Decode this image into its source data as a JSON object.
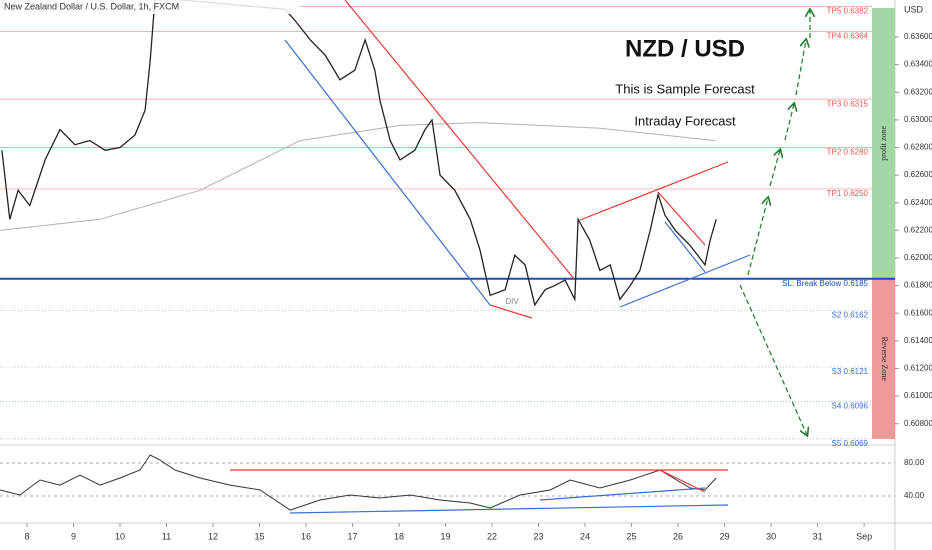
{
  "chart_data": {
    "type": "line",
    "title": "New Zealand Dollar / U.S. Dollar, 1h, FXCM",
    "currency": "USD",
    "headline": "NZD / USD",
    "subtitle": "This is Sample Forecast",
    "note": "Intraday Forecast",
    "divergence_label": "DIV",
    "zones": [
      {
        "label": "profit zone",
        "color": "#a5d6a7"
      },
      {
        "label": "Reverse Zone",
        "color": "#ef9a9a"
      }
    ],
    "xlim": [
      -0.58,
      18.17
    ],
    "xticks": [
      {
        "value": 0,
        "label": "8"
      },
      {
        "value": 1,
        "label": "9"
      },
      {
        "value": 2,
        "label": "10"
      },
      {
        "value": 3,
        "label": "11"
      },
      {
        "value": 4,
        "label": "12"
      },
      {
        "value": 5,
        "label": "15"
      },
      {
        "value": 6,
        "label": "16"
      },
      {
        "value": 7,
        "label": "17"
      },
      {
        "value": 8,
        "label": "18"
      },
      {
        "value": 9,
        "label": "19"
      },
      {
        "value": 10,
        "label": "22"
      },
      {
        "value": 11,
        "label": "23"
      },
      {
        "value": 12,
        "label": "24"
      },
      {
        "value": 13,
        "label": "25"
      },
      {
        "value": 14,
        "label": "26"
      },
      {
        "value": 15,
        "label": "29"
      },
      {
        "value": 16,
        "label": "30"
      },
      {
        "value": 17,
        "label": "31"
      },
      {
        "value": 18,
        "label": "Sep"
      }
    ],
    "ylim": [
      0.60682,
      0.63868
    ],
    "yticks": [
      {
        "value": 0.608,
        "label": "0.60800"
      },
      {
        "value": 0.61,
        "label": "0.61000"
      },
      {
        "value": 0.612,
        "label": "0.61200"
      },
      {
        "value": 0.614,
        "label": "0.61400"
      },
      {
        "value": 0.616,
        "label": "0.61600"
      },
      {
        "value": 0.618,
        "label": "0.61800"
      },
      {
        "value": 0.62,
        "label": "0.62000"
      },
      {
        "value": 0.622,
        "label": "0.62200"
      },
      {
        "value": 0.624,
        "label": "0.62400"
      },
      {
        "value": 0.626,
        "label": "0.62600"
      },
      {
        "value": 0.628,
        "label": "0.62800"
      },
      {
        "value": 0.63,
        "label": "0.63000"
      },
      {
        "value": 0.632,
        "label": "0.63200"
      },
      {
        "value": 0.634,
        "label": "0.63400"
      },
      {
        "value": 0.636,
        "label": "0.63600"
      }
    ],
    "series": [
      {
        "color": "#222222",
        "x": [
          -0.54,
          -0.37,
          -0.19,
          0.06,
          0.39,
          0.71,
          1.03,
          1.35,
          1.68,
          2.0,
          2.32,
          2.54,
          2.65,
          2.75,
          3.29,
          5.55,
          5.76,
          6.09,
          6.41,
          6.73,
          7.05,
          7.27,
          7.48,
          7.59,
          7.81,
          8.02,
          8.34,
          8.56,
          8.71,
          8.88,
          9.2,
          9.53,
          9.74,
          9.96,
          10.28,
          10.49,
          10.71,
          10.92,
          11.14,
          11.35,
          11.57,
          11.78,
          11.85,
          12.1,
          12.32,
          12.54,
          12.75,
          12.97,
          13.18,
          13.4,
          13.57,
          13.72,
          13.94,
          14.26,
          14.58,
          14.69,
          14.82
        ],
        "values": [
          0.6278,
          0.6228,
          0.6249,
          0.6238,
          0.6271,
          0.6293,
          0.6282,
          0.6285,
          0.6278,
          0.628,
          0.6289,
          0.6307,
          0.6343,
          0.6387,
          0.6387,
          0.638,
          0.6372,
          0.6358,
          0.6347,
          0.6329,
          0.6336,
          0.6358,
          0.6336,
          0.6314,
          0.6285,
          0.6271,
          0.6278,
          0.6293,
          0.63,
          0.626,
          0.6249,
          0.6228,
          0.6206,
          0.6173,
          0.6177,
          0.6202,
          0.6195,
          0.6166,
          0.6177,
          0.618,
          0.6184,
          0.617,
          0.6228,
          0.6213,
          0.6191,
          0.6195,
          0.617,
          0.618,
          0.6191,
          0.622,
          0.6246,
          0.6231,
          0.622,
          0.6209,
          0.6195,
          0.6213,
          0.6228
        ]
      },
      {
        "color": "#b0b0b0",
        "x": [
          -0.58,
          1.57,
          3.72,
          5.87,
          8.02,
          9.74,
          12.32,
          14.8
        ],
        "values": [
          0.622,
          0.6228,
          0.6249,
          0.6285,
          0.6296,
          0.6298,
          0.6294,
          0.6285
        ]
      }
    ],
    "levels": [
      {
        "label": "TP5 0.6382",
        "value": 0.6382,
        "color": "#ef5350"
      },
      {
        "label": "TP4 0.6364",
        "value": 0.6364,
        "color": "#ef5350"
      },
      {
        "label": "TP3 0.6315",
        "value": 0.6315,
        "color": "#ef5350"
      },
      {
        "label": "TP2 0.6280",
        "value": 0.628,
        "color": "#ef5350"
      },
      {
        "label": "TP1 0.6250",
        "value": 0.625,
        "color": "#ef5350"
      },
      {
        "label": "SL: Break Below 0.6185",
        "value": 0.6185,
        "color": "#1e4fb0"
      },
      {
        "label": "S2 0.6162",
        "value": 0.6162,
        "color": "#3b6fd0"
      },
      {
        "label": "S3 0.6121",
        "value": 0.6121,
        "color": "#3b6fd0"
      },
      {
        "label": "S4 0.6096",
        "value": 0.6096,
        "color": "#3b6fd0"
      },
      {
        "label": "S5 0.6069",
        "value": 0.6069,
        "color": "#3b6fd0"
      }
    ],
    "rsi": {
      "color": "#333333",
      "ylim": [
        17,
        95.8
      ],
      "yticks": [
        {
          "value": 80,
          "label": "80.00"
        },
        {
          "value": 40,
          "label": "40.00"
        }
      ],
      "x": [
        -0.58,
        -0.15,
        0.28,
        0.71,
        1.14,
        1.57,
        2.0,
        2.43,
        2.65,
        2.86,
        3.18,
        3.72,
        4.37,
        5.01,
        5.66,
        6.3,
        6.95,
        7.59,
        8.24,
        8.88,
        9.53,
        9.96,
        10.6,
        11.25,
        11.68,
        12.32,
        12.97,
        13.61,
        14.26,
        14.58,
        14.82
      ],
      "values": [
        47.3,
        41.2,
        59.4,
        53.3,
        65.5,
        53.3,
        61.8,
        71.5,
        89.7,
        83.6,
        71.5,
        61.8,
        53.3,
        47.3,
        23.0,
        35.2,
        41.2,
        37.6,
        41.2,
        35.2,
        31.5,
        25.5,
        41.2,
        47.3,
        59.4,
        49.7,
        59.4,
        71.5,
        49.7,
        47.3,
        61.8
      ]
    }
  }
}
